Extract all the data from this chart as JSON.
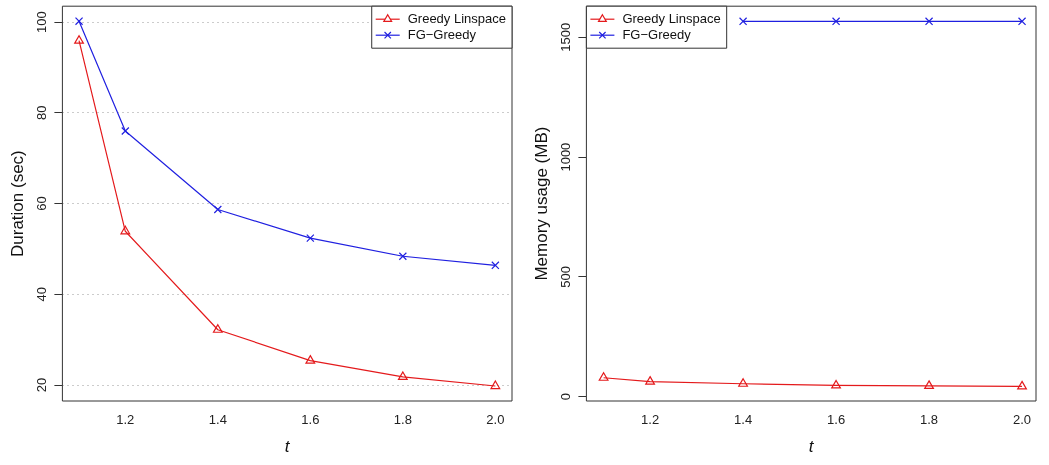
{
  "chart_data": [
    {
      "type": "line",
      "xlabel": "t",
      "ylabel": "Duration (sec)",
      "x": [
        1.1,
        1.2,
        1.4,
        1.6,
        1.8,
        2.0
      ],
      "xlim": [
        1.064,
        2.036
      ],
      "xticks": [
        1.2,
        1.4,
        1.6,
        1.8,
        {
          "value": 2.0,
          "label": "2.0"
        }
      ],
      "ylim": [
        16.5,
        103.5
      ],
      "yticks": [
        20,
        40,
        60,
        80,
        100
      ],
      "grid": "y",
      "legend": "top right",
      "series": [
        {
          "name": "Greedy Linspace",
          "color": "#e41a1c",
          "marker": "triangle",
          "values": [
            95.9,
            53.9,
            32.2,
            25.4,
            21.8,
            19.8
          ]
        },
        {
          "name": "FG−Greedy",
          "color": "#2020e0",
          "marker": "cross",
          "values": [
            100.2,
            76.0,
            58.7,
            52.4,
            48.4,
            46.4
          ]
        }
      ]
    },
    {
      "type": "line",
      "xlabel": "t",
      "ylabel": "Memory usage (MB)",
      "x": [
        1.1,
        1.2,
        1.4,
        1.6,
        1.8,
        2.0
      ],
      "xlim": [
        1.063,
        2.03
      ],
      "xticks": [
        1.2,
        1.4,
        1.6,
        1.8,
        {
          "value": 2.0,
          "label": "2.0"
        }
      ],
      "ylim": [
        -18,
        1630
      ],
      "yticks": [
        0,
        500,
        1000,
        1500
      ],
      "legend": "top left",
      "series": [
        {
          "name": "Greedy Linspace",
          "color": "#e41a1c",
          "marker": "triangle",
          "values": [
            79,
            63,
            54,
            47,
            45,
            43
          ]
        },
        {
          "name": "FG−Greedy",
          "color": "#2020e0",
          "marker": "cross",
          "values": [
            null,
            null,
            1567,
            1567,
            1567,
            1567
          ]
        }
      ]
    }
  ]
}
